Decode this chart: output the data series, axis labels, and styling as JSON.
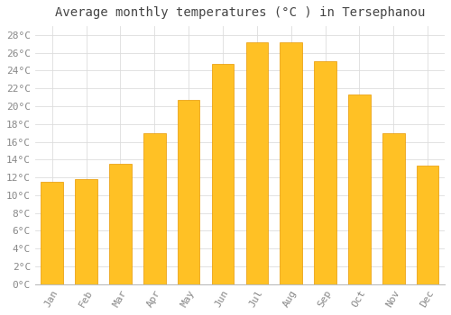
{
  "title": "Average monthly temperatures (°C ) in Tersephanou",
  "months": [
    "Jan",
    "Feb",
    "Mar",
    "Apr",
    "May",
    "Jun",
    "Jul",
    "Aug",
    "Sep",
    "Oct",
    "Nov",
    "Dec"
  ],
  "values": [
    11.5,
    11.8,
    13.5,
    17.0,
    20.7,
    24.8,
    27.2,
    27.2,
    25.1,
    21.3,
    17.0,
    13.3
  ],
  "bar_color_top": "#FFC125",
  "bar_color_bottom": "#FFA500",
  "bar_edge_color": "#E89800",
  "background_color": "#FFFFFF",
  "grid_color": "#DDDDDD",
  "text_color": "#888888",
  "title_color": "#444444",
  "ylim": [
    0,
    29
  ],
  "ytick_step": 2,
  "title_fontsize": 10,
  "tick_fontsize": 8,
  "font_family": "monospace"
}
